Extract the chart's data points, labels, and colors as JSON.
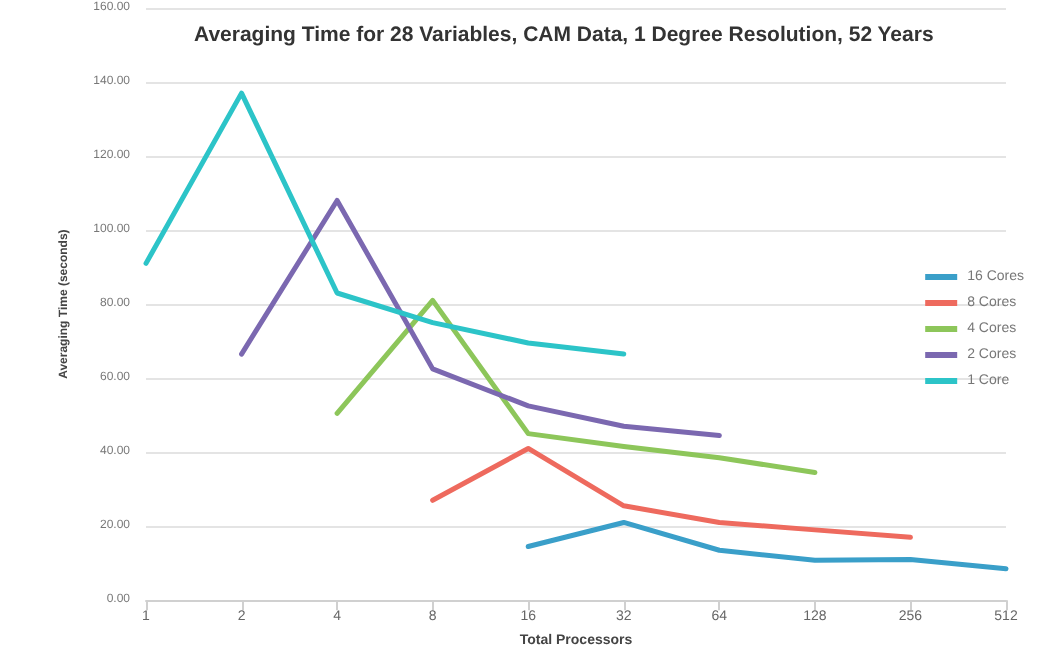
{
  "chart_data": {
    "type": "line",
    "title": "Averaging Time for 28 Variables, CAM Data, 1 Degree Resolution, 52 Years",
    "xlabel": "Total Processors",
    "ylabel": "Averaging Time (seconds)",
    "categories": [
      "1",
      "2",
      "4",
      "8",
      "16",
      "32",
      "64",
      "128",
      "256",
      "512"
    ],
    "series": [
      {
        "name": "16 Cores",
        "color": "#3a9fc9",
        "values": [
          null,
          null,
          null,
          null,
          14.5,
          21,
          13.5,
          10.8,
          11,
          8.5
        ]
      },
      {
        "name": "8 Cores",
        "color": "#ee6a5e",
        "values": [
          null,
          null,
          null,
          27,
          41,
          25.5,
          21,
          19,
          17,
          null
        ]
      },
      {
        "name": "4 Cores",
        "color": "#8dc65a",
        "values": [
          null,
          null,
          50.5,
          81,
          45,
          41.5,
          38.5,
          34.5,
          null,
          null
        ]
      },
      {
        "name": "2 Cores",
        "color": "#7b68b0",
        "values": [
          null,
          66.5,
          108,
          62.5,
          52.5,
          47,
          44.5,
          null,
          null,
          null
        ]
      },
      {
        "name": "1 Core",
        "color": "#2cc4c8",
        "values": [
          91,
          137,
          83,
          75,
          69.5,
          66.5,
          null,
          null,
          null,
          null
        ]
      }
    ],
    "ylim": [
      0,
      160
    ],
    "yticks": [
      {
        "value": 0,
        "label": "0.00"
      },
      {
        "value": 20,
        "label": "20.00"
      },
      {
        "value": 40,
        "label": "40.00"
      },
      {
        "value": 60,
        "label": "60.00"
      },
      {
        "value": 80,
        "label": "80.00"
      },
      {
        "value": 100,
        "label": "100.00"
      },
      {
        "value": 120,
        "label": "120.00"
      },
      {
        "value": 140,
        "label": "140.00"
      },
      {
        "value": 160,
        "label": "160.00"
      }
    ],
    "grid": "y",
    "legend": "right",
    "marker": "none",
    "line_style": "solid"
  }
}
